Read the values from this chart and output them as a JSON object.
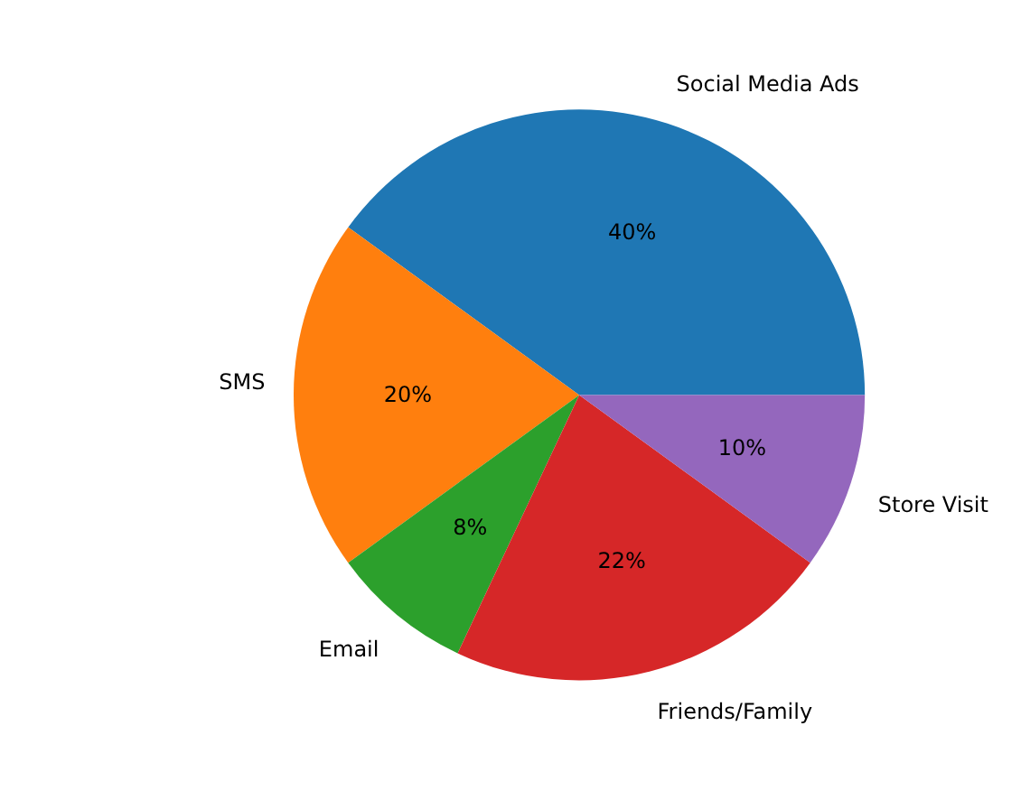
{
  "chart_data": {
    "type": "pie",
    "categories": [
      "Social Media Ads",
      "SMS",
      "Email",
      "Friends/Family",
      "Store Visit"
    ],
    "values": [
      40,
      20,
      8,
      22,
      10
    ],
    "colors": [
      "#1f77b4",
      "#ff7f0e",
      "#2ca02c",
      "#d62728",
      "#9467bd"
    ],
    "value_labels": [
      "40%",
      "20%",
      "8%",
      "22%",
      "10%"
    ]
  }
}
